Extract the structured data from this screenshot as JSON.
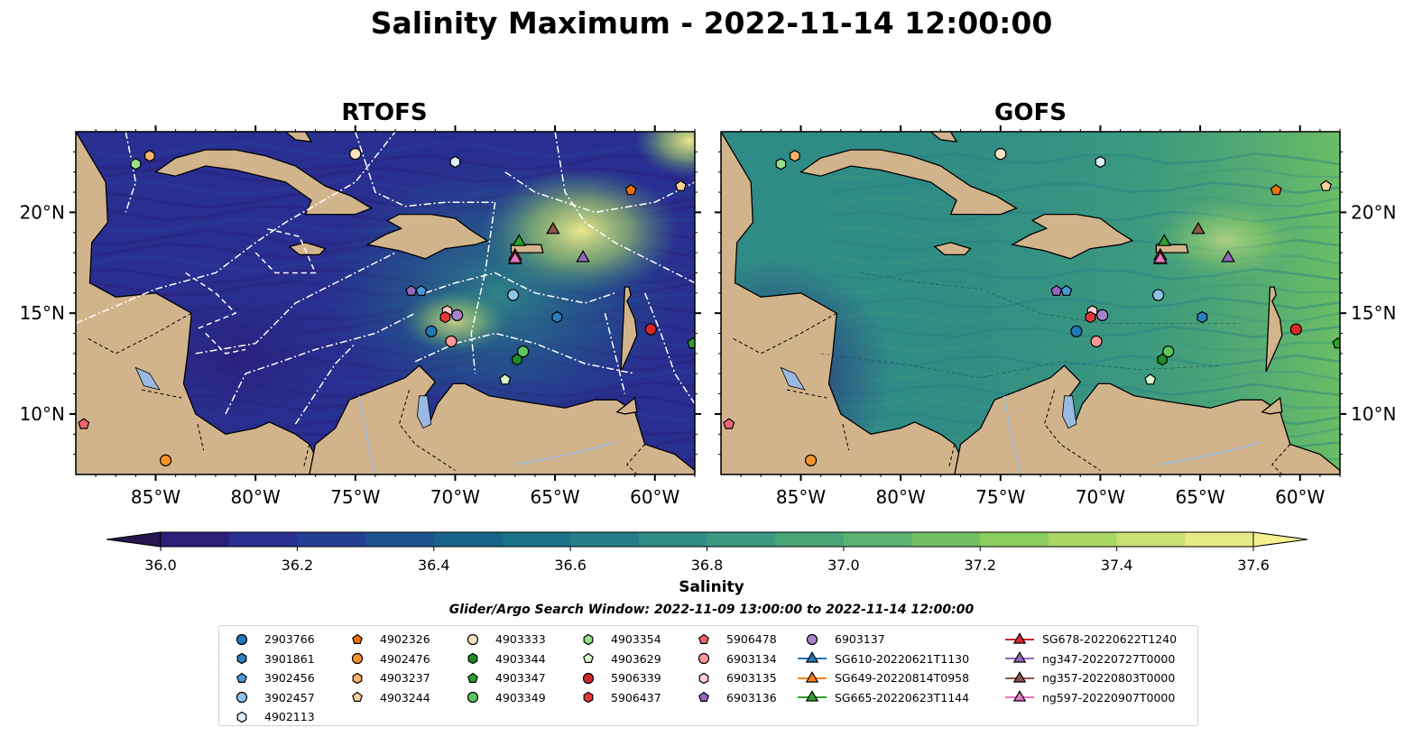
{
  "title": "Salinity Maximum - 2022-11-14 12:00:00",
  "panels": [
    {
      "title": "RTOFS",
      "id": "rtofs"
    },
    {
      "title": "GOFS",
      "id": "gofs"
    }
  ],
  "axes": {
    "lon_ticks": [
      "85°W",
      "80°W",
      "75°W",
      "70°W",
      "65°W",
      "60°W"
    ],
    "lon_values": [
      -85,
      -80,
      -75,
      -70,
      -65,
      -60
    ],
    "lat_ticks": [
      "20°N",
      "15°N",
      "10°N"
    ],
    "lat_values": [
      20,
      15,
      10
    ],
    "lon_range": [
      -89,
      -58
    ],
    "lat_range": [
      7,
      24
    ]
  },
  "colorbar": {
    "label": "Salinity",
    "range": [
      36.0,
      37.6
    ],
    "ticks": [
      "36.0",
      "36.2",
      "36.4",
      "36.6",
      "36.8",
      "37.0",
      "37.2",
      "37.4",
      "37.6"
    ],
    "extend": "both",
    "colors": [
      "#25164d",
      "#2b1f7a",
      "#292f90",
      "#233f94",
      "#1c5390",
      "#176389",
      "#1a7188",
      "#257e87",
      "#2f8b85",
      "#3a987f",
      "#48a578",
      "#5ab36f",
      "#70c063",
      "#8ccd5f",
      "#aad865",
      "#c9e173",
      "#e6ea87",
      "#f6f08f"
    ]
  },
  "search_window": "Glider/Argo Search Window: 2022-11-09 13:00:00 to 2022-11-14 12:00:00",
  "legend": {
    "columns": [
      [
        {
          "label": "2903766",
          "marker": "circle",
          "color": "#1f77b4"
        },
        {
          "label": "3901861",
          "marker": "hexagon",
          "color": "#2d7fc0"
        },
        {
          "label": "3902456",
          "marker": "pentagon",
          "color": "#4a9ad6"
        },
        {
          "label": "3902457",
          "marker": "circle",
          "color": "#8fc2ea"
        },
        {
          "label": "4902113",
          "marker": "hexagon",
          "color": "#dbeefb"
        }
      ],
      [
        {
          "label": "4902326",
          "marker": "pentagon",
          "color": "#e8710a"
        },
        {
          "label": "4902476",
          "marker": "circle",
          "color": "#f5932c"
        },
        {
          "label": "4903237",
          "marker": "hexagon",
          "color": "#f8b26a"
        },
        {
          "label": "4903244",
          "marker": "pentagon",
          "color": "#fbcf9a"
        }
      ],
      [
        {
          "label": "4903333",
          "marker": "circle",
          "color": "#fde3c3"
        },
        {
          "label": "4903344",
          "marker": "hexagon",
          "color": "#228b22"
        },
        {
          "label": "4903347",
          "marker": "pentagon",
          "color": "#2ca02c"
        },
        {
          "label": "4903349",
          "marker": "circle",
          "color": "#5cc55c"
        }
      ],
      [
        {
          "label": "4903354",
          "marker": "hexagon",
          "color": "#98df8a"
        },
        {
          "label": "4903629",
          "marker": "pentagon",
          "color": "#d5f5cc"
        },
        {
          "label": "5906339",
          "marker": "circle",
          "color": "#d62728"
        },
        {
          "label": "5906437",
          "marker": "hexagon",
          "color": "#e8383b"
        }
      ],
      [
        {
          "label": "5906478",
          "marker": "pentagon",
          "color": "#f06472"
        },
        {
          "label": "6903134",
          "marker": "circle",
          "color": "#ff9896"
        },
        {
          "label": "6903135",
          "marker": "hexagon",
          "color": "#ffcdd2"
        },
        {
          "label": "6903136",
          "marker": "pentagon",
          "color": "#9467bd"
        }
      ],
      [
        {
          "label": "6903137",
          "marker": "circle",
          "color": "#a883cc"
        },
        {
          "label": "SG610-20220621T1130",
          "marker": "triangle-line",
          "color": "#1f77b4"
        },
        {
          "label": "SG649-20220814T0958",
          "marker": "triangle-line",
          "color": "#ff7f0e"
        },
        {
          "label": "SG665-20220623T1144",
          "marker": "triangle-line",
          "color": "#2ca02c"
        }
      ],
      [
        {
          "label": "SG678-20220622T1240",
          "marker": "triangle-line",
          "color": "#d62728"
        },
        {
          "label": "ng347-20220727T0000",
          "marker": "triangle-line",
          "color": "#9467bd"
        },
        {
          "label": "ng357-20220803T0000",
          "marker": "triangle-line",
          "color": "#8c564b"
        },
        {
          "label": "ng597-20220907T0000",
          "marker": "triangle-line",
          "color": "#e377c2"
        }
      ]
    ]
  },
  "map_points": [
    {
      "id": "4902476",
      "lon": -84.5,
      "lat": 7.7,
      "marker": "circle",
      "color": "#f5932c"
    },
    {
      "id": "5906478",
      "lon": -88.6,
      "lat": 9.5,
      "marker": "pentagon",
      "color": "#f06472"
    },
    {
      "id": "4903354",
      "lon": -86.0,
      "lat": 22.4,
      "marker": "hexagon",
      "color": "#98df8a"
    },
    {
      "id": "4903237",
      "lon": -85.3,
      "lat": 22.8,
      "marker": "hexagon",
      "color": "#f8b26a"
    },
    {
      "id": "4903333",
      "lon": -75.0,
      "lat": 22.9,
      "marker": "circle",
      "color": "#fde3c3"
    },
    {
      "id": "4902113",
      "lon": -70.0,
      "lat": 22.5,
      "marker": "hexagon",
      "color": "#dbeefb"
    },
    {
      "id": "4902326",
      "lon": -61.2,
      "lat": 21.1,
      "marker": "pentagon",
      "color": "#e8710a"
    },
    {
      "id": "4903244",
      "lon": -58.7,
      "lat": 21.3,
      "marker": "pentagon",
      "color": "#fbcf9a"
    },
    {
      "id": "ng357",
      "lon": -65.1,
      "lat": 19.2,
      "marker": "triangle",
      "color": "#8c564b"
    },
    {
      "id": "SG665",
      "lon": -66.8,
      "lat": 18.6,
      "marker": "triangle",
      "color": "#2ca02c"
    },
    {
      "id": "SG678",
      "lon": -67.0,
      "lat": 17.9,
      "marker": "triangle",
      "color": "#d62728"
    },
    {
      "id": "SG649",
      "lon": -67.0,
      "lat": 17.7,
      "marker": "triangle",
      "color": "#ff7f0e"
    },
    {
      "id": "ng597",
      "lon": -67.0,
      "lat": 17.75,
      "marker": "triangle",
      "color": "#e377c2"
    },
    {
      "id": "ng347",
      "lon": -63.6,
      "lat": 17.8,
      "marker": "triangle",
      "color": "#9467bd"
    },
    {
      "id": "6903136",
      "lon": -72.2,
      "lat": 16.1,
      "marker": "pentagon",
      "color": "#9467bd"
    },
    {
      "id": "3902456",
      "lon": -71.7,
      "lat": 16.1,
      "marker": "pentagon",
      "color": "#4a9ad6"
    },
    {
      "id": "3902457",
      "lon": -67.1,
      "lat": 15.9,
      "marker": "circle",
      "color": "#8fc2ea"
    },
    {
      "id": "3901861",
      "lon": -64.9,
      "lat": 14.8,
      "marker": "hexagon",
      "color": "#2d7fc0"
    },
    {
      "id": "6903135",
      "lon": -70.4,
      "lat": 15.1,
      "marker": "hexagon",
      "color": "#ffcdd2"
    },
    {
      "id": "5906437",
      "lon": -70.5,
      "lat": 14.8,
      "marker": "hexagon",
      "color": "#e8383b"
    },
    {
      "id": "6903137",
      "lon": -69.9,
      "lat": 14.9,
      "marker": "circle",
      "color": "#a883cc"
    },
    {
      "id": "2903766",
      "lon": -71.2,
      "lat": 14.1,
      "marker": "circle",
      "color": "#1f77b4"
    },
    {
      "id": "6903134",
      "lon": -70.2,
      "lat": 13.6,
      "marker": "circle",
      "color": "#ff9896"
    },
    {
      "id": "5906339",
      "lon": -60.2,
      "lat": 14.2,
      "marker": "circle",
      "color": "#d62728"
    },
    {
      "id": "4903347",
      "lon": -58.1,
      "lat": 13.5,
      "marker": "pentagon",
      "color": "#2ca02c"
    },
    {
      "id": "4903349",
      "lon": -66.6,
      "lat": 13.1,
      "marker": "circle",
      "color": "#5cc55c"
    },
    {
      "id": "4903344",
      "lon": -66.9,
      "lat": 12.7,
      "marker": "hexagon",
      "color": "#228b22"
    },
    {
      "id": "4903629",
      "lon": -67.5,
      "lat": 11.7,
      "marker": "pentagon",
      "color": "#d5f5cc"
    }
  ]
}
